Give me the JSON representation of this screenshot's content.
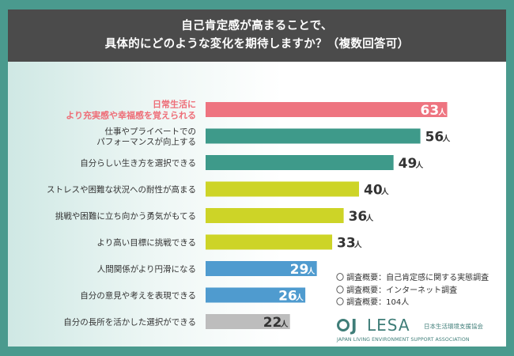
{
  "header": {
    "line1": "自己肯定感が高まることで、",
    "line2": "具体的にどのような変化を期待しますか？（複数回答可）"
  },
  "chart_data": {
    "type": "bar",
    "orientation": "horizontal",
    "unit": "人",
    "categories": [
      [
        "日常生活に",
        "より充実感や幸福感を覚えられる"
      ],
      [
        "仕事やプライベートでの",
        "パフォーマンスが向上する"
      ],
      [
        "自分らしい生き方を選択できる"
      ],
      [
        "ストレスや困難な状況への耐性が高まる"
      ],
      [
        "挑戦や困難に立ち向かう勇気がもてる"
      ],
      [
        "より高い目標に挑戦できる"
      ],
      [
        "人間関係がより円滑になる"
      ],
      [
        "自分の意見や考えを表現できる"
      ],
      [
        "自分の長所を活かした選択ができる"
      ]
    ],
    "values": [
      63,
      56,
      49,
      40,
      36,
      33,
      29,
      26,
      22
    ],
    "colors": [
      "#ee7480",
      "#3e9a8a",
      "#3e9a8a",
      "#cdd427",
      "#cdd427",
      "#cdd427",
      "#4f9bcf",
      "#4f9bcf",
      "#bdbdbd"
    ],
    "value_inside": [
      true,
      false,
      false,
      false,
      false,
      false,
      true,
      true,
      true
    ],
    "highlight_index": 0
  },
  "notes": [
    "〇 調査概要：自己肯定感に関する実態調査",
    "〇 調査概要：インターネット調査",
    "〇 調査概要：104人"
  ],
  "logo": {
    "mark": "J",
    "name": "LESA",
    "jp": "日本生活環境支援協会",
    "en": "JAPAN LIVING ENVIRONMENT SUPPORT ASSOCIATION"
  }
}
